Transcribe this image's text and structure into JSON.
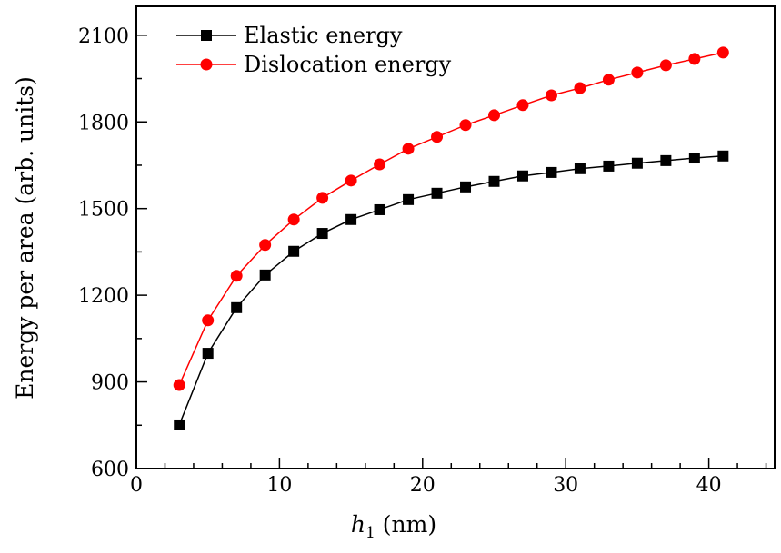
{
  "chart_data": {
    "type": "line",
    "title": "",
    "xlabel": "h_1 (nm)",
    "xlabel_var": "h",
    "xlabel_sub": "1",
    "xlabel_unit": " (nm)",
    "ylabel": "Energy per area (arb. units)",
    "xlim": [
      0,
      44.6
    ],
    "ylim": [
      600,
      2200
    ],
    "xticks": [
      0,
      10,
      20,
      30,
      40
    ],
    "yticks": [
      600,
      900,
      1200,
      1500,
      1800,
      2100
    ],
    "grid": false,
    "legend_position": "top-left",
    "x": [
      3,
      5,
      7,
      9,
      11,
      13,
      15,
      17,
      19,
      21,
      23,
      25,
      27,
      29,
      31,
      33,
      35,
      37,
      39,
      41
    ],
    "series": [
      {
        "name": "Elastic energy",
        "color": "#000000",
        "marker": "square",
        "values": [
          751,
          999,
          1157,
          1270,
          1352,
          1414,
          1462,
          1496,
          1531,
          1553,
          1575,
          1594,
          1613,
          1625,
          1638,
          1647,
          1657,
          1666,
          1675,
          1682
        ]
      },
      {
        "name": "Dislocation energy",
        "color": "#ff0000",
        "marker": "circle",
        "values": [
          889,
          1113,
          1267,
          1374,
          1462,
          1537,
          1597,
          1653,
          1707,
          1748,
          1789,
          1823,
          1858,
          1892,
          1917,
          1946,
          1971,
          1996,
          2018,
          2040
        ]
      }
    ]
  }
}
